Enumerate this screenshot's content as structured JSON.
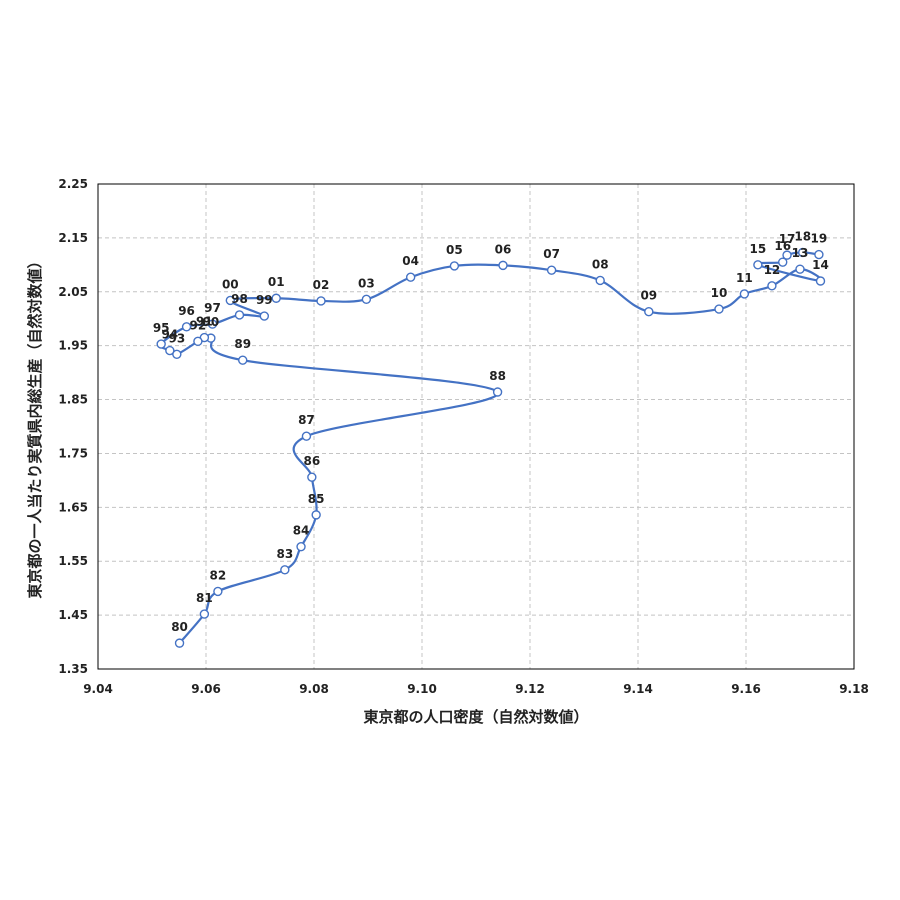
{
  "chart_data": {
    "type": "scatter",
    "xlabel": "東京都の人口密度（自然対数値）",
    "ylabel": "東京都の一人当たり実質県内総生産（自然対数値）",
    "xlim": [
      9.04,
      9.18
    ],
    "ylim": [
      1.35,
      2.25
    ],
    "xticks": [
      "9.04",
      "9.06",
      "9.08",
      "9.10",
      "9.12",
      "9.14",
      "9.16",
      "9.18"
    ],
    "yticks": [
      "1.35",
      "1.45",
      "1.55",
      "1.65",
      "1.75",
      "1.85",
      "1.95",
      "2.05",
      "2.15",
      "2.25"
    ],
    "grid": true,
    "connected": true,
    "colors": {
      "line": "#4472C4",
      "marker_fill": "#ffffff",
      "grid": "#c4c4c4"
    },
    "points": [
      {
        "label": "80",
        "x": 9.0551,
        "y": 1.398
      },
      {
        "label": "81",
        "x": 9.0597,
        "y": 1.452
      },
      {
        "label": "82",
        "x": 9.0622,
        "y": 1.494
      },
      {
        "label": "83",
        "x": 9.0746,
        "y": 1.534
      },
      {
        "label": "84",
        "x": 9.0776,
        "y": 1.577
      },
      {
        "label": "85",
        "x": 9.0804,
        "y": 1.636
      },
      {
        "label": "86",
        "x": 9.0796,
        "y": 1.706
      },
      {
        "label": "87",
        "x": 9.0786,
        "y": 1.782
      },
      {
        "label": "88",
        "x": 9.114,
        "y": 1.864
      },
      {
        "label": "89",
        "x": 9.0668,
        "y": 1.923
      },
      {
        "label": "90",
        "x": 9.0609,
        "y": 1.964
      },
      {
        "label": "91",
        "x": 9.0597,
        "y": 1.965
      },
      {
        "label": "92",
        "x": 9.0585,
        "y": 1.958
      },
      {
        "label": "93",
        "x": 9.0546,
        "y": 1.934
      },
      {
        "label": "94",
        "x": 9.0533,
        "y": 1.941
      },
      {
        "label": "95",
        "x": 9.0517,
        "y": 1.953
      },
      {
        "label": "96",
        "x": 9.0564,
        "y": 1.985
      },
      {
        "label": "97",
        "x": 9.0612,
        "y": 1.99
      },
      {
        "label": "98",
        "x": 9.0662,
        "y": 2.007
      },
      {
        "label": "99",
        "x": 9.0708,
        "y": 2.005
      },
      {
        "label": "00",
        "x": 9.0645,
        "y": 2.034
      },
      {
        "label": "01",
        "x": 9.073,
        "y": 2.038
      },
      {
        "label": "02",
        "x": 9.0813,
        "y": 2.033
      },
      {
        "label": "03",
        "x": 9.0897,
        "y": 2.036
      },
      {
        "label": "04",
        "x": 9.0979,
        "y": 2.077
      },
      {
        "label": "05",
        "x": 9.106,
        "y": 2.098
      },
      {
        "label": "06",
        "x": 9.115,
        "y": 2.099
      },
      {
        "label": "07",
        "x": 9.124,
        "y": 2.09
      },
      {
        "label": "08",
        "x": 9.133,
        "y": 2.071
      },
      {
        "label": "09",
        "x": 9.142,
        "y": 2.013
      },
      {
        "label": "10",
        "x": 9.155,
        "y": 2.018
      },
      {
        "label": "11",
        "x": 9.1597,
        "y": 2.046
      },
      {
        "label": "12",
        "x": 9.1648,
        "y": 2.061
      },
      {
        "label": "13",
        "x": 9.17,
        "y": 2.092
      },
      {
        "label": "14",
        "x": 9.1738,
        "y": 2.07
      },
      {
        "label": "15",
        "x": 9.1622,
        "y": 2.1
      },
      {
        "label": "16",
        "x": 9.1668,
        "y": 2.105
      },
      {
        "label": "17",
        "x": 9.1676,
        "y": 2.118
      },
      {
        "label": "18",
        "x": 9.1705,
        "y": 2.123
      },
      {
        "label": "19",
        "x": 9.1735,
        "y": 2.119
      }
    ]
  }
}
